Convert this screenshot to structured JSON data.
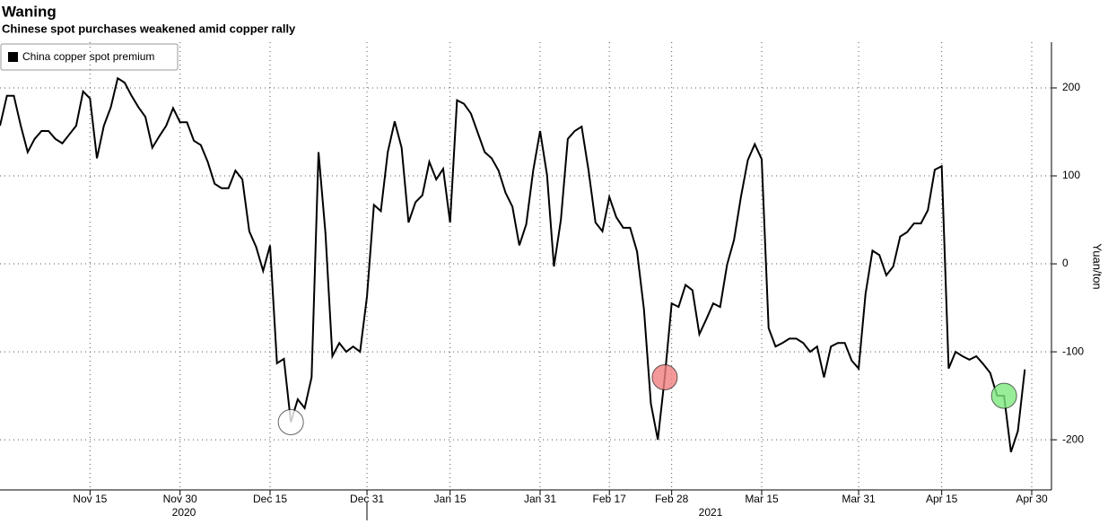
{
  "chart_data": {
    "type": "line",
    "title": "Waning",
    "subtitle": "Chinese spot purchases weakened amid copper rally",
    "y_label": "Yuan/ton",
    "categories": [
      null,
      null,
      null,
      null,
      null,
      null,
      null,
      null,
      null,
      null,
      null,
      null,
      null,
      "Nov 15",
      null,
      null,
      null,
      null,
      null,
      null,
      null,
      null,
      null,
      null,
      null,
      null,
      "Nov 30",
      null,
      null,
      null,
      null,
      null,
      null,
      null,
      null,
      null,
      null,
      null,
      null,
      "Dec 15",
      null,
      null,
      null,
      null,
      null,
      null,
      null,
      null,
      null,
      null,
      null,
      null,
      null,
      "Dec 31",
      null,
      null,
      null,
      null,
      null,
      null,
      null,
      null,
      null,
      null,
      null,
      "Jan 15",
      null,
      null,
      null,
      null,
      null,
      null,
      null,
      null,
      null,
      null,
      null,
      null,
      "Jan 31",
      null,
      null,
      null,
      null,
      null,
      null,
      null,
      null,
      null,
      "Feb 17",
      null,
      null,
      null,
      null,
      null,
      null,
      null,
      null,
      "Feb 28",
      null,
      null,
      null,
      null,
      null,
      null,
      null,
      null,
      null,
      null,
      null,
      null,
      "Mar 15",
      null,
      null,
      null,
      null,
      null,
      null,
      null,
      null,
      null,
      null,
      null,
      null,
      null,
      "Mar 31",
      null,
      null,
      null,
      null,
      null,
      null,
      null,
      null,
      null,
      null,
      null,
      "Apr 15",
      null,
      null,
      null,
      null,
      null,
      null,
      null,
      null,
      null,
      null,
      null,
      null,
      "Apr 30"
    ],
    "series": [
      {
        "name": "China copper spot premium",
        "color": "#000000",
        "values": [
          157,
          191,
          191,
          157,
          127,
          142,
          151,
          151,
          142,
          137,
          147,
          157,
          196,
          188,
          120,
          157,
          178,
          211,
          206,
          191,
          178,
          167,
          132,
          145,
          157,
          177,
          161,
          161,
          140,
          135,
          116,
          91,
          86,
          86,
          106,
          96,
          37,
          19,
          -8,
          21,
          -113,
          -108,
          -180,
          -154,
          -164,
          -129,
          127,
          35,
          -105,
          -90,
          -100,
          -94,
          -100,
          -37,
          67,
          60,
          127,
          162,
          132,
          47,
          70,
          78,
          116,
          96,
          108,
          47,
          186,
          182,
          171,
          149,
          127,
          120,
          106,
          81,
          65,
          21,
          45,
          106,
          151,
          101,
          -3,
          50,
          142,
          151,
          156,
          106,
          47,
          37,
          76,
          53,
          41,
          41,
          14,
          -52,
          -159,
          -200,
          -129,
          -45,
          -49,
          -24,
          -30,
          -80,
          -63,
          -45,
          -49,
          -1,
          27,
          76,
          118,
          136,
          119,
          -73,
          -94,
          -90,
          -85,
          -85,
          -90,
          -100,
          -94,
          -129,
          -94,
          -90,
          -90,
          -110,
          -119,
          -34,
          15,
          10,
          -13,
          -3,
          31,
          36,
          46,
          46,
          61,
          107,
          111,
          -119,
          -100,
          -105,
          -109,
          -105,
          -114,
          -124,
          -150,
          -150,
          -214,
          -190,
          -120,
          null
        ]
      }
    ],
    "markers": [
      {
        "point": 42,
        "color": "#ffffff"
      },
      {
        "point": 96,
        "color": "#f08080"
      },
      {
        "point": 145,
        "color": "#7ee87e"
      }
    ],
    "x_groups": [
      {
        "label": "2020"
      },
      {
        "label": "2021"
      }
    ],
    "ylim": [
      -257,
      252
    ],
    "yticks": [
      -200,
      -100,
      0,
      100,
      200
    ],
    "grid": true
  }
}
